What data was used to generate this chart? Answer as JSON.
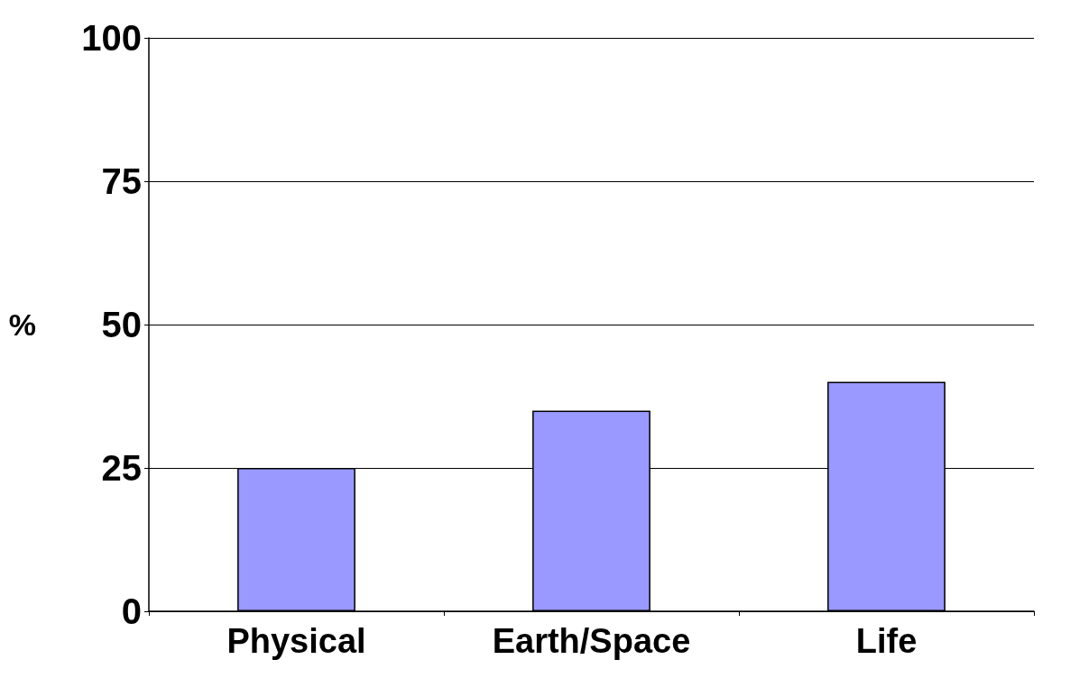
{
  "chart_data": {
    "type": "bar",
    "ylabel": "%",
    "categories": [
      "Physical",
      "Earth/Space",
      "Life"
    ],
    "values": [
      25,
      35,
      40
    ],
    "color": "#9999ff",
    "ylim": [
      0,
      100
    ],
    "yticks": [
      0,
      25,
      50,
      75,
      100
    ],
    "grid": "y"
  }
}
